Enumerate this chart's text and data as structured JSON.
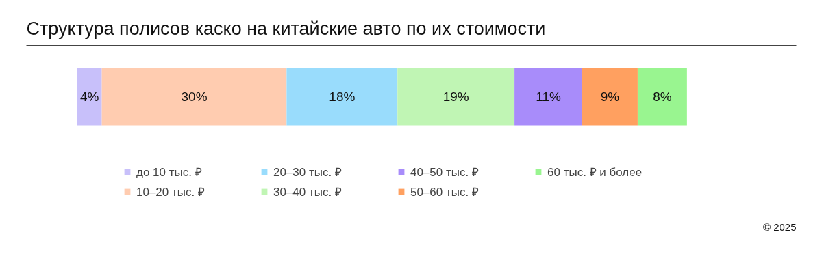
{
  "chart_data": {
    "type": "bar",
    "title": "Структура полисов каско на китайские авто по их стоимости",
    "orientation": "horizontal",
    "stacked": true,
    "categories": [
      null
    ],
    "legend": "bottom",
    "annotations": [
      "© 2025"
    ],
    "series": [
      {
        "name": "до 10 тыс. ₽",
        "color": "#c8c0fa",
        "values": [
          4
        ],
        "value_labels": [
          "4%"
        ]
      },
      {
        "name": "10–20 тыс. ₽",
        "color": "#ffccb0",
        "values": [
          30
        ],
        "value_labels": [
          "30%"
        ]
      },
      {
        "name": "20–30 тыс. ₽",
        "color": "#99dcfc",
        "values": [
          18
        ],
        "value_labels": [
          "18%"
        ]
      },
      {
        "name": "30–40 тыс. ₽",
        "color": "#c0f5b4",
        "values": [
          19
        ],
        "value_labels": [
          "19%"
        ]
      },
      {
        "name": "40–50 тыс. ₽",
        "color": "#a88cfa",
        "values": [
          11
        ],
        "value_labels": [
          "11%"
        ]
      },
      {
        "name": "50–60 тыс. ₽",
        "color": "#ffa060",
        "values": [
          9
        ],
        "value_labels": [
          "9%"
        ]
      },
      {
        "name": "60 тыс. ₽ и более",
        "color": "#99f590",
        "values": [
          8
        ],
        "value_labels": [
          "8%"
        ]
      }
    ]
  }
}
